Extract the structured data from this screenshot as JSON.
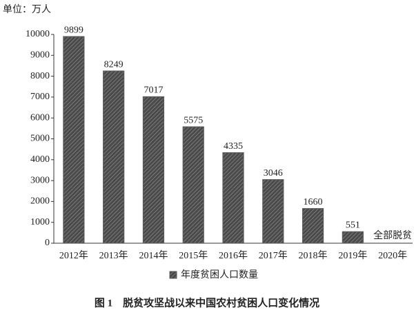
{
  "chart_data": {
    "type": "bar",
    "unit_label": "单位：万人",
    "title": "图 1　脱贫攻坚战以来中国农村贫困人口变化情况",
    "categories": [
      "2012年",
      "2013年",
      "2014年",
      "2015年",
      "2016年",
      "2017年",
      "2018年",
      "2019年",
      "2020年"
    ],
    "series": [
      {
        "name": "年度贫困人口数量",
        "color": "#5a5a5a",
        "values": [
          9899,
          8249,
          7017,
          5575,
          4335,
          3046,
          1660,
          551,
          null
        ]
      }
    ],
    "annotation": "全部脱贫",
    "ylim": [
      0,
      10000
    ],
    "yticks": [
      0,
      1000,
      2000,
      3000,
      4000,
      5000,
      6000,
      7000,
      8000,
      9000,
      10000
    ],
    "grid": false
  }
}
